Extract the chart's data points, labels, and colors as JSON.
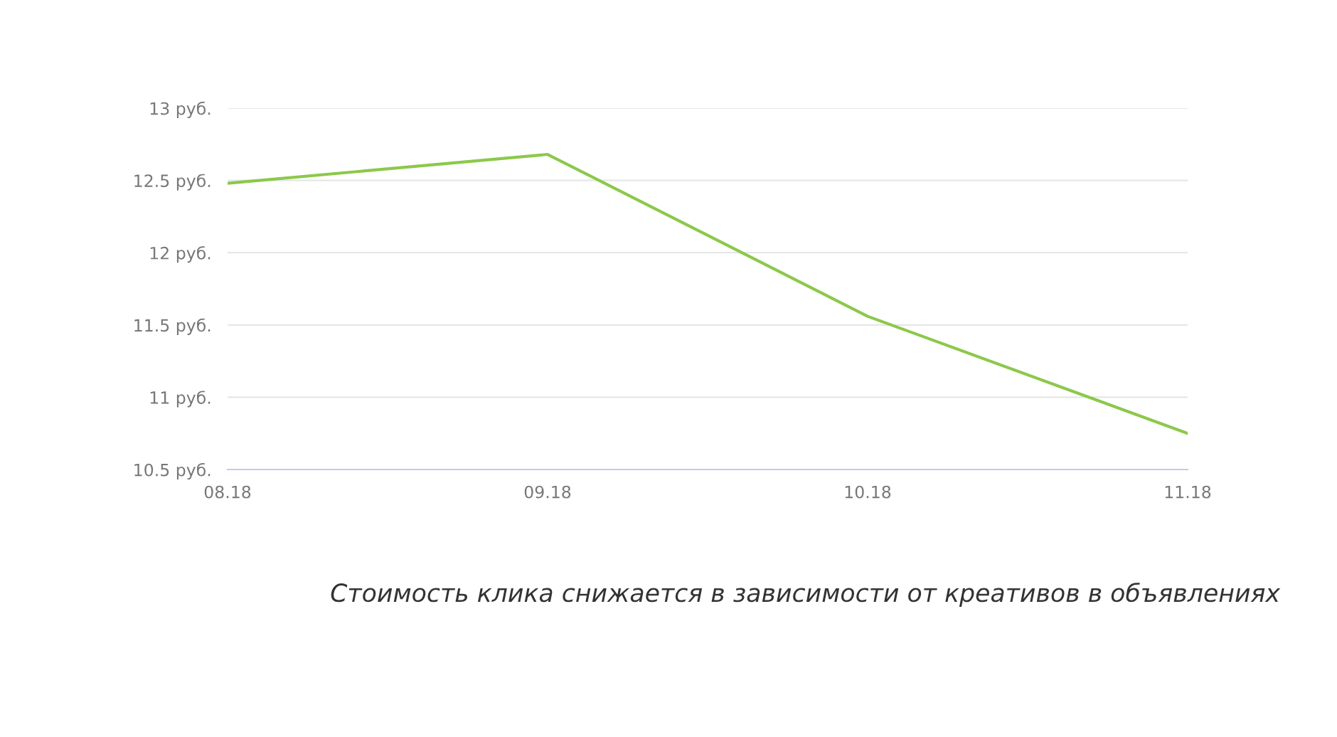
{
  "chart_data": {
    "type": "line",
    "categories": [
      "08.18",
      "09.18",
      "10.18",
      "11.18"
    ],
    "series": [
      {
        "color": "#8cc84b",
        "values": [
          12.48,
          12.68,
          11.56,
          10.75
        ]
      }
    ],
    "ylim": [
      10.5,
      13
    ],
    "yticks": [
      {
        "value": 10.5,
        "label": "10.5 руб."
      },
      {
        "value": 11,
        "label": "11 руб."
      },
      {
        "value": 11.5,
        "label": "11.5 руб."
      },
      {
        "value": 12,
        "label": "12 руб."
      },
      {
        "value": 12.5,
        "label": "12.5 руб."
      },
      {
        "value": 13,
        "label": "13 руб."
      }
    ],
    "grid": "y",
    "marker": "none",
    "line_style": "solid",
    "annotations": [
      "Стоимость клика снижается в зависимости от креативов в объявлениях"
    ]
  }
}
